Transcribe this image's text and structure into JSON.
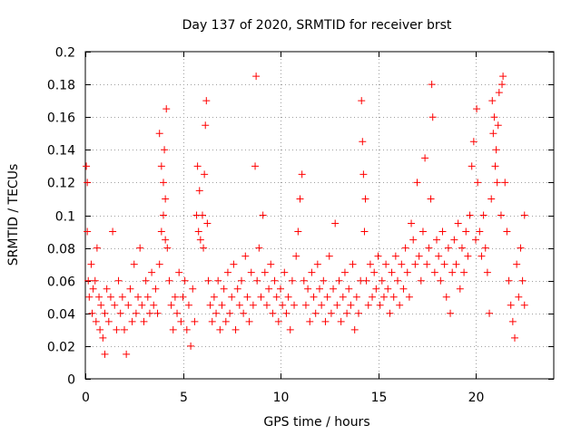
{
  "chart_data": {
    "type": "scatter",
    "title": "Day 137 of 2020, SRMTID for receiver brst",
    "xlabel": "GPS time / hours",
    "ylabel": "SRMTID / TECUs",
    "xlim": [
      0,
      24
    ],
    "ylim": [
      0,
      0.2
    ],
    "x_ticks": [
      0,
      5,
      10,
      15,
      20
    ],
    "x_tick_labels": [
      "0",
      "5",
      "10",
      "15",
      "20"
    ],
    "y_ticks": [
      0,
      0.02,
      0.04,
      0.06,
      0.08,
      0.1,
      0.12,
      0.14,
      0.16,
      0.18,
      0.2
    ],
    "y_tick_labels": [
      "0",
      "0.02",
      "0.04",
      "0.06",
      "0.08",
      "0.1",
      "0.12",
      "0.14",
      "0.16",
      "0.18",
      "0.2"
    ],
    "grid": true,
    "marker": "+",
    "marker_color": "#ff0000",
    "series": [
      {
        "name": "brst",
        "points": [
          [
            0.05,
            0.13
          ],
          [
            0.1,
            0.12
          ],
          [
            0.1,
            0.09
          ],
          [
            0.15,
            0.06
          ],
          [
            0.2,
            0.05
          ],
          [
            0.3,
            0.07
          ],
          [
            0.35,
            0.04
          ],
          [
            0.4,
            0.055
          ],
          [
            0.5,
            0.06
          ],
          [
            0.55,
            0.035
          ],
          [
            0.6,
            0.08
          ],
          [
            0.7,
            0.05
          ],
          [
            0.75,
            0.03
          ],
          [
            0.8,
            0.045
          ],
          [
            0.9,
            0.025
          ],
          [
            1.0,
            0.04
          ],
          [
            1.0,
            0.015
          ],
          [
            1.1,
            0.055
          ],
          [
            1.2,
            0.035
          ],
          [
            1.3,
            0.05
          ],
          [
            1.4,
            0.09
          ],
          [
            1.5,
            0.045
          ],
          [
            1.6,
            0.03
          ],
          [
            1.7,
            0.06
          ],
          [
            1.8,
            0.04
          ],
          [
            1.9,
            0.05
          ],
          [
            2.0,
            0.03
          ],
          [
            2.1,
            0.015
          ],
          [
            2.2,
            0.045
          ],
          [
            2.3,
            0.055
          ],
          [
            2.4,
            0.035
          ],
          [
            2.5,
            0.07
          ],
          [
            2.6,
            0.04
          ],
          [
            2.7,
            0.05
          ],
          [
            2.8,
            0.08
          ],
          [
            2.9,
            0.045
          ],
          [
            3.0,
            0.035
          ],
          [
            3.1,
            0.06
          ],
          [
            3.2,
            0.05
          ],
          [
            3.3,
            0.04
          ],
          [
            3.4,
            0.065
          ],
          [
            3.5,
            0.045
          ],
          [
            3.6,
            0.055
          ],
          [
            3.7,
            0.04
          ],
          [
            3.8,
            0.07
          ],
          [
            3.8,
            0.15
          ],
          [
            3.9,
            0.09
          ],
          [
            3.9,
            0.13
          ],
          [
            4.0,
            0.1
          ],
          [
            4.0,
            0.12
          ],
          [
            4.05,
            0.14
          ],
          [
            4.1,
            0.085
          ],
          [
            4.1,
            0.11
          ],
          [
            4.15,
            0.165
          ],
          [
            4.2,
            0.08
          ],
          [
            4.3,
            0.06
          ],
          [
            4.4,
            0.045
          ],
          [
            4.5,
            0.03
          ],
          [
            4.6,
            0.05
          ],
          [
            4.7,
            0.04
          ],
          [
            4.8,
            0.065
          ],
          [
            4.9,
            0.035
          ],
          [
            5.0,
            0.05
          ],
          [
            5.1,
            0.06
          ],
          [
            5.2,
            0.03
          ],
          [
            5.3,
            0.045
          ],
          [
            5.4,
            0.02
          ],
          [
            5.5,
            0.055
          ],
          [
            5.6,
            0.035
          ],
          [
            5.7,
            0.1
          ],
          [
            5.75,
            0.13
          ],
          [
            5.8,
            0.09
          ],
          [
            5.85,
            0.115
          ],
          [
            5.9,
            0.085
          ],
          [
            6.0,
            0.1
          ],
          [
            6.05,
            0.08
          ],
          [
            6.1,
            0.125
          ],
          [
            6.15,
            0.155
          ],
          [
            6.2,
            0.17
          ],
          [
            6.25,
            0.095
          ],
          [
            6.3,
            0.06
          ],
          [
            6.4,
            0.045
          ],
          [
            6.5,
            0.035
          ],
          [
            6.6,
            0.05
          ],
          [
            6.7,
            0.04
          ],
          [
            6.8,
            0.06
          ],
          [
            6.9,
            0.03
          ],
          [
            7.0,
            0.045
          ],
          [
            7.1,
            0.055
          ],
          [
            7.2,
            0.035
          ],
          [
            7.3,
            0.065
          ],
          [
            7.4,
            0.04
          ],
          [
            7.5,
            0.05
          ],
          [
            7.6,
            0.07
          ],
          [
            7.7,
            0.03
          ],
          [
            7.8,
            0.055
          ],
          [
            7.9,
            0.045
          ],
          [
            8.0,
            0.06
          ],
          [
            8.1,
            0.04
          ],
          [
            8.2,
            0.075
          ],
          [
            8.3,
            0.05
          ],
          [
            8.4,
            0.035
          ],
          [
            8.5,
            0.065
          ],
          [
            8.6,
            0.045
          ],
          [
            8.7,
            0.13
          ],
          [
            8.75,
            0.185
          ],
          [
            8.8,
            0.06
          ],
          [
            8.9,
            0.08
          ],
          [
            9.0,
            0.05
          ],
          [
            9.1,
            0.1
          ],
          [
            9.2,
            0.065
          ],
          [
            9.3,
            0.045
          ],
          [
            9.4,
            0.055
          ],
          [
            9.5,
            0.07
          ],
          [
            9.6,
            0.04
          ],
          [
            9.7,
            0.06
          ],
          [
            9.8,
            0.05
          ],
          [
            9.9,
            0.035
          ],
          [
            10.0,
            0.055
          ],
          [
            10.1,
            0.045
          ],
          [
            10.2,
            0.065
          ],
          [
            10.3,
            0.04
          ],
          [
            10.4,
            0.05
          ],
          [
            10.5,
            0.03
          ],
          [
            10.6,
            0.06
          ],
          [
            10.7,
            0.045
          ],
          [
            10.8,
            0.075
          ],
          [
            10.9,
            0.09
          ],
          [
            11.0,
            0.11
          ],
          [
            11.1,
            0.125
          ],
          [
            11.2,
            0.06
          ],
          [
            11.3,
            0.045
          ],
          [
            11.4,
            0.055
          ],
          [
            11.5,
            0.035
          ],
          [
            11.6,
            0.065
          ],
          [
            11.7,
            0.05
          ],
          [
            11.8,
            0.04
          ],
          [
            11.9,
            0.07
          ],
          [
            12.0,
            0.055
          ],
          [
            12.1,
            0.045
          ],
          [
            12.2,
            0.06
          ],
          [
            12.3,
            0.035
          ],
          [
            12.4,
            0.05
          ],
          [
            12.5,
            0.075
          ],
          [
            12.6,
            0.04
          ],
          [
            12.7,
            0.055
          ],
          [
            12.8,
            0.095
          ],
          [
            12.9,
            0.045
          ],
          [
            13.0,
            0.06
          ],
          [
            13.1,
            0.035
          ],
          [
            13.2,
            0.05
          ],
          [
            13.3,
            0.065
          ],
          [
            13.4,
            0.04
          ],
          [
            13.5,
            0.055
          ],
          [
            13.6,
            0.045
          ],
          [
            13.7,
            0.07
          ],
          [
            13.8,
            0.03
          ],
          [
            13.9,
            0.05
          ],
          [
            14.0,
            0.04
          ],
          [
            14.1,
            0.06
          ],
          [
            14.15,
            0.17
          ],
          [
            14.2,
            0.145
          ],
          [
            14.25,
            0.125
          ],
          [
            14.3,
            0.09
          ],
          [
            14.35,
            0.11
          ],
          [
            14.4,
            0.06
          ],
          [
            14.5,
            0.045
          ],
          [
            14.6,
            0.07
          ],
          [
            14.7,
            0.05
          ],
          [
            14.8,
            0.065
          ],
          [
            14.9,
            0.055
          ],
          [
            15.0,
            0.075
          ],
          [
            15.1,
            0.045
          ],
          [
            15.2,
            0.06
          ],
          [
            15.3,
            0.05
          ],
          [
            15.4,
            0.07
          ],
          [
            15.5,
            0.055
          ],
          [
            15.6,
            0.04
          ],
          [
            15.7,
            0.065
          ],
          [
            15.8,
            0.05
          ],
          [
            15.9,
            0.075
          ],
          [
            16.0,
            0.06
          ],
          [
            16.1,
            0.045
          ],
          [
            16.2,
            0.07
          ],
          [
            16.3,
            0.055
          ],
          [
            16.4,
            0.08
          ],
          [
            16.5,
            0.065
          ],
          [
            16.6,
            0.05
          ],
          [
            16.7,
            0.095
          ],
          [
            16.8,
            0.085
          ],
          [
            16.9,
            0.07
          ],
          [
            17.0,
            0.12
          ],
          [
            17.1,
            0.075
          ],
          [
            17.2,
            0.06
          ],
          [
            17.3,
            0.09
          ],
          [
            17.4,
            0.135
          ],
          [
            17.5,
            0.07
          ],
          [
            17.6,
            0.08
          ],
          [
            17.7,
            0.11
          ],
          [
            17.75,
            0.18
          ],
          [
            17.8,
            0.16
          ],
          [
            17.9,
            0.065
          ],
          [
            18.0,
            0.085
          ],
          [
            18.1,
            0.075
          ],
          [
            18.2,
            0.06
          ],
          [
            18.3,
            0.09
          ],
          [
            18.4,
            0.07
          ],
          [
            18.5,
            0.05
          ],
          [
            18.6,
            0.08
          ],
          [
            18.7,
            0.04
          ],
          [
            18.8,
            0.065
          ],
          [
            18.9,
            0.085
          ],
          [
            19.0,
            0.07
          ],
          [
            19.1,
            0.095
          ],
          [
            19.2,
            0.055
          ],
          [
            19.3,
            0.08
          ],
          [
            19.4,
            0.065
          ],
          [
            19.5,
            0.09
          ],
          [
            19.6,
            0.075
          ],
          [
            19.7,
            0.1
          ],
          [
            19.8,
            0.13
          ],
          [
            19.9,
            0.145
          ],
          [
            20.0,
            0.085
          ],
          [
            20.05,
            0.165
          ],
          [
            20.1,
            0.12
          ],
          [
            20.2,
            0.09
          ],
          [
            20.3,
            0.075
          ],
          [
            20.4,
            0.1
          ],
          [
            20.5,
            0.08
          ],
          [
            20.6,
            0.065
          ],
          [
            20.7,
            0.04
          ],
          [
            20.8,
            0.11
          ],
          [
            20.85,
            0.17
          ],
          [
            20.9,
            0.15
          ],
          [
            20.95,
            0.16
          ],
          [
            21.0,
            0.13
          ],
          [
            21.05,
            0.14
          ],
          [
            21.1,
            0.12
          ],
          [
            21.15,
            0.155
          ],
          [
            21.2,
            0.175
          ],
          [
            21.3,
            0.1
          ],
          [
            21.35,
            0.18
          ],
          [
            21.4,
            0.185
          ],
          [
            21.5,
            0.12
          ],
          [
            21.6,
            0.09
          ],
          [
            21.7,
            0.06
          ],
          [
            21.8,
            0.045
          ],
          [
            21.9,
            0.035
          ],
          [
            22.0,
            0.025
          ],
          [
            22.1,
            0.07
          ],
          [
            22.2,
            0.05
          ],
          [
            22.3,
            0.08
          ],
          [
            22.4,
            0.06
          ],
          [
            22.5,
            0.045
          ],
          [
            22.5,
            0.1
          ]
        ]
      }
    ]
  }
}
